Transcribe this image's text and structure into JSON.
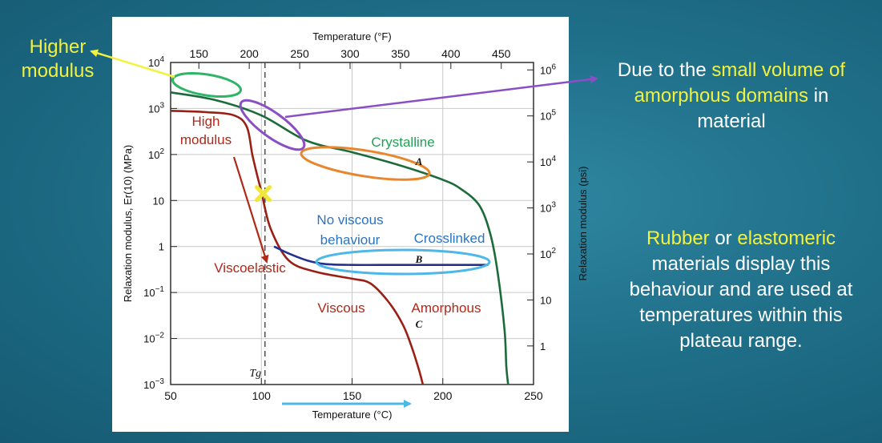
{
  "colors": {
    "background": "#1f6d87",
    "crystalline": "#1c6b3a",
    "amorphous": "#9a2016",
    "crosslinked": "#23308f",
    "cyan_annotation": "#4db8e8",
    "orange_annotation": "#e8862e",
    "purple_annotation": "#8a4fc4",
    "green_annotation": "#2fb46a",
    "highlight_text": "#f2f23c"
  },
  "callouts": {
    "higher_modulus": "Higher modulus",
    "amorphous_note": {
      "pre": "Due to the ",
      "hl1": "small volume of amorphous",
      "hl2": "domains",
      "post": " in material"
    },
    "rubber_note": {
      "hl1": "Rubber",
      "mid": " or ",
      "hl2": "elastomeric",
      "post": " materials display this behaviour and are used at temperatures within this plateau range."
    }
  },
  "chart_data": {
    "type": "line",
    "xlabel": "Temperature (°C)",
    "x2label": "Temperature (°F)",
    "ylabel": "Relaxation modulus, Er(10) (MPa)",
    "y2label": "Relaxation modulus (psi)",
    "xlim": [
      50,
      250
    ],
    "ylim_log10": [
      -3,
      4
    ],
    "y_scale": "log",
    "x_ticks": [
      "50",
      "100",
      "150",
      "200",
      "250"
    ],
    "x2_ticks": [
      "150",
      "200",
      "250",
      "300",
      "350",
      "400",
      "450"
    ],
    "y_ticks": [
      {
        "base": "10",
        "exp": "4"
      },
      {
        "base": "10",
        "exp": "3"
      },
      {
        "base": "10",
        "exp": "2"
      },
      {
        "base": "10",
        "exp": ""
      },
      {
        "base": "1",
        "exp": ""
      },
      {
        "base": "10",
        "exp": "−1"
      },
      {
        "base": "10",
        "exp": "−2"
      },
      {
        "base": "10",
        "exp": "−3"
      }
    ],
    "y2_ticks": [
      {
        "base": "10",
        "exp": "6"
      },
      {
        "base": "10",
        "exp": "5"
      },
      {
        "base": "10",
        "exp": "4"
      },
      {
        "base": "10",
        "exp": "3"
      },
      {
        "base": "10",
        "exp": "2"
      },
      {
        "base": "10",
        "exp": ""
      },
      {
        "base": "1",
        "exp": ""
      }
    ],
    "tg_label": "Tg",
    "tg_x": 102,
    "grid": true,
    "series": [
      {
        "name": "Crystalline",
        "marker_label": "A",
        "x": [
          50,
          75,
          100,
          125,
          150,
          175,
          200,
          210,
          220,
          226,
          230,
          234,
          235,
          236
        ],
        "log_y": [
          3.35,
          3.18,
          2.85,
          2.3,
          2.05,
          1.78,
          1.45,
          1.25,
          0.9,
          0.3,
          -0.5,
          -1.8,
          -2.6,
          -3.0
        ]
      },
      {
        "name": "Amorphous",
        "marker_label": "C",
        "x": [
          50,
          70,
          85,
          92,
          95,
          98,
          100,
          105,
          115,
          130,
          150,
          160,
          170,
          178,
          183,
          187,
          189
        ],
        "log_y": [
          2.95,
          2.92,
          2.85,
          2.6,
          2.0,
          1.5,
          1.2,
          0.4,
          -0.3,
          -0.55,
          -0.7,
          -0.8,
          -1.2,
          -1.7,
          -2.2,
          -2.7,
          -3.0
        ]
      },
      {
        "name": "Crosslinked",
        "marker_label": "B",
        "x": [
          107,
          115,
          125,
          135,
          150,
          175,
          200,
          225
        ],
        "log_y": [
          0.0,
          -0.15,
          -0.3,
          -0.38,
          -0.4,
          -0.4,
          -0.4,
          -0.4
        ]
      }
    ],
    "annotations": {
      "high_modulus": "High modulus",
      "viscoelastic": "Viscoelastic",
      "viscous": "Viscous",
      "crystalline": "Crystalline",
      "no_viscous": "No viscous behaviour",
      "crosslinked": "Crosslinked",
      "amorphous": "Amorphous"
    },
    "marked_point": {
      "x": 101,
      "log_y": 1.15
    }
  }
}
